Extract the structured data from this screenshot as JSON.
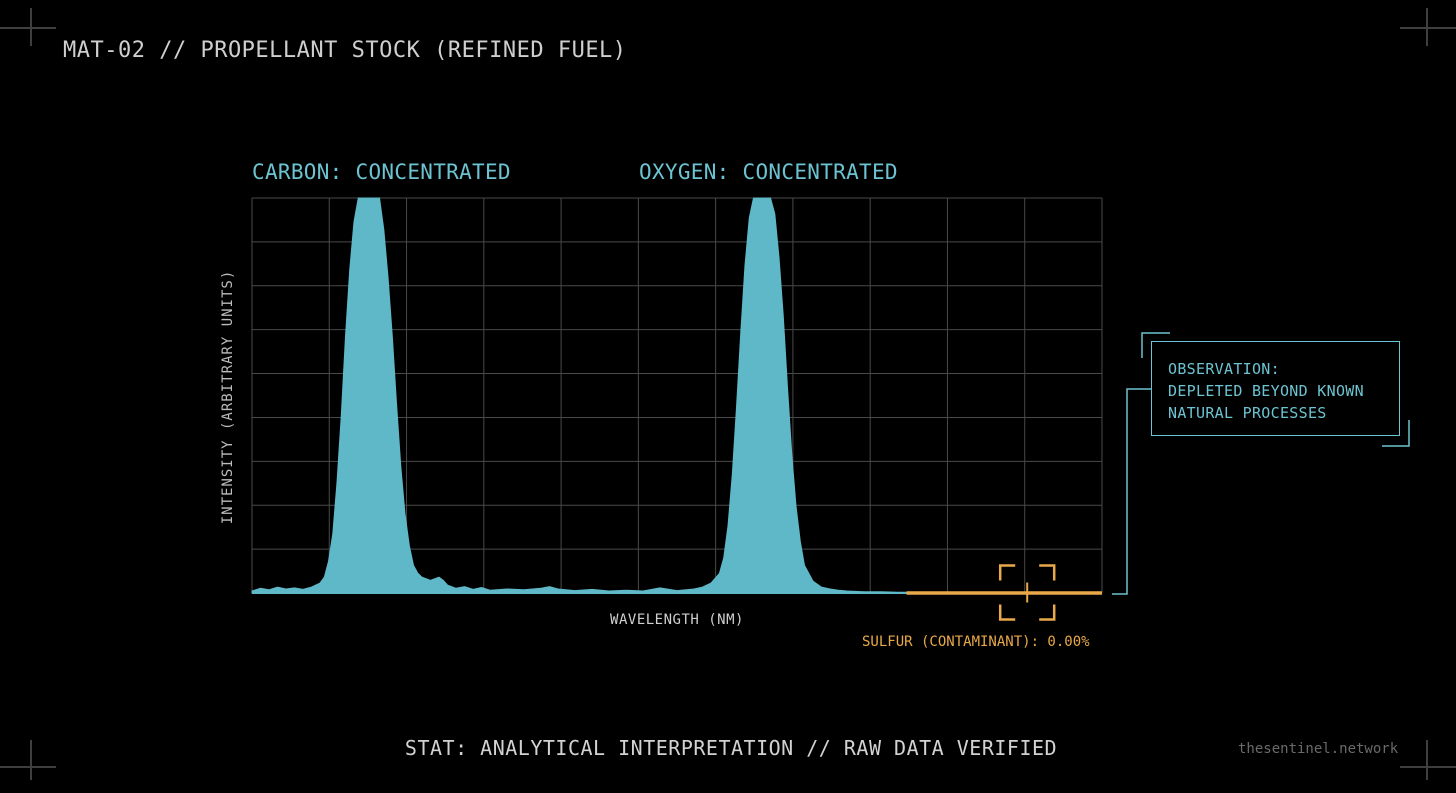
{
  "header": {
    "title": "MAT-02 // PROPELLANT STOCK (REFINED FUEL)"
  },
  "peaks": [
    {
      "label": "CARBON: CONCENTRATED"
    },
    {
      "label": "OXYGEN: CONCENTRATED"
    }
  ],
  "observation": {
    "lines": [
      "OBSERVATION:",
      "DEPLETED BEYOND KNOWN",
      "NATURAL PROCESSES"
    ]
  },
  "footer": {
    "status": "STAT: ANALYTICAL INTERPRETATION // RAW DATA VERIFIED",
    "brand": "thesentinel.network"
  },
  "colors": {
    "background": "#000000",
    "spectrum_fill": "#5fb8c8",
    "accent_cyan": "#6cc3d1",
    "sulfur_highlight": "#e9a94a",
    "grid": "#4a4a4a"
  },
  "chart_data": {
    "type": "area",
    "xlabel": "WAVELENGTH (NM)",
    "ylabel": "INTENSITY (ARBITRARY UNITS)",
    "xlim": [
      0,
      100
    ],
    "ylim": [
      0,
      100
    ],
    "grid": true,
    "grid_divisions": {
      "x": 11,
      "y": 9
    },
    "series": [
      {
        "x": [
          0,
          1,
          2,
          3,
          4,
          5,
          6,
          7,
          8,
          8.5,
          9,
          9.5,
          10,
          10.5,
          11,
          11.5,
          12,
          12.5,
          13,
          13.5,
          14,
          14.5,
          15,
          15.5,
          16,
          16.5,
          17,
          17.5,
          18,
          18.5,
          19,
          19.5,
          20,
          21,
          22,
          22.5,
          23,
          24,
          25,
          26,
          27,
          28,
          30,
          32,
          34,
          35,
          36,
          38,
          40,
          42,
          44,
          46,
          48,
          50,
          52,
          53,
          54,
          55,
          55.5,
          56,
          56.5,
          57,
          57.5,
          58,
          58.5,
          59,
          59.5,
          60,
          60.5,
          61,
          61.5,
          62,
          62.5,
          63,
          63.5,
          64,
          64.5,
          65,
          66,
          67,
          68,
          69,
          70,
          72,
          74,
          76,
          77
        ],
        "y": [
          0.5,
          1.2,
          0.8,
          1.5,
          1.0,
          1.3,
          0.9,
          1.5,
          2.5,
          4,
          8,
          15,
          28,
          45,
          65,
          82,
          94,
          100,
          100,
          100,
          100,
          100,
          100,
          92,
          80,
          65,
          48,
          32,
          20,
          12,
          7,
          5,
          4,
          3.2,
          4,
          3.2,
          2,
          1.2,
          1.6,
          0.9,
          1.4,
          0.7,
          1.0,
          0.8,
          1.2,
          1.6,
          1.0,
          0.6,
          0.9,
          0.5,
          0.7,
          0.5,
          1.3,
          0.6,
          1.0,
          1.5,
          2.5,
          5,
          9,
          17,
          30,
          47,
          66,
          83,
          95,
          100,
          100,
          100,
          100,
          100,
          96,
          85,
          70,
          52,
          35,
          22,
          13,
          7,
          3,
          1.5,
          1.0,
          0.7,
          0.5,
          0.3,
          0.3,
          0.2,
          0.2
        ]
      }
    ],
    "flat_segment": {
      "x": [
        77,
        100
      ],
      "y": 0
    },
    "annotations": [
      {
        "text": "SULFUR (CONTAMINANT): 0.00%",
        "x": 91.2,
        "y": 0
      }
    ]
  }
}
